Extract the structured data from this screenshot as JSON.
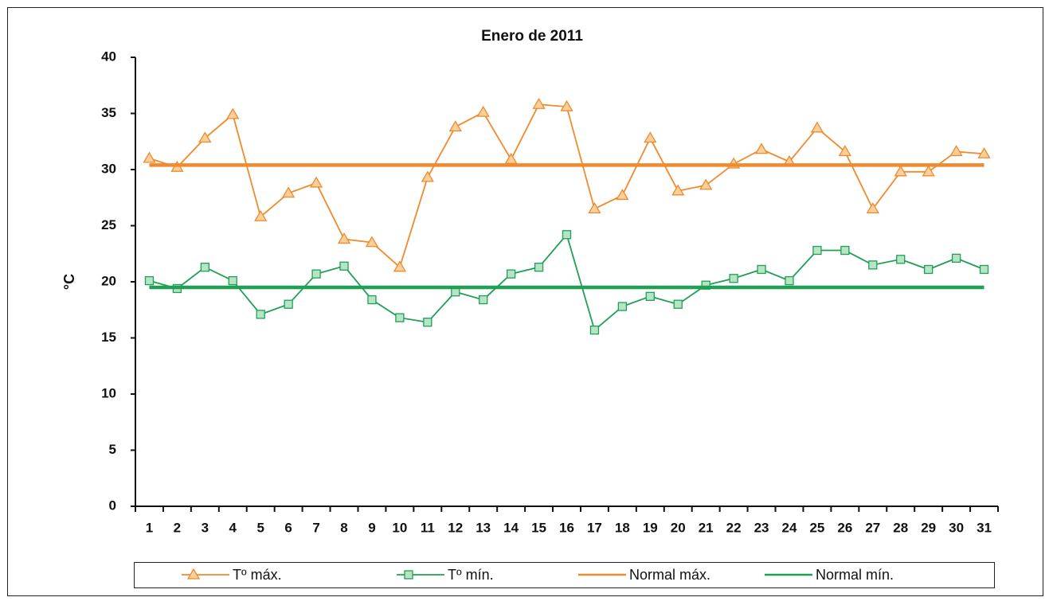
{
  "chart_data": {
    "type": "line",
    "title": "Enero de 2011",
    "y_label": "°C",
    "categories": [
      "1",
      "2",
      "3",
      "4",
      "5",
      "6",
      "7",
      "8",
      "9",
      "10",
      "11",
      "12",
      "13",
      "14",
      "15",
      "16",
      "17",
      "18",
      "19",
      "20",
      "21",
      "22",
      "23",
      "24",
      "25",
      "26",
      "27",
      "28",
      "29",
      "30",
      "31"
    ],
    "ylim": [
      0,
      40
    ],
    "yticks": [
      0,
      5,
      10,
      15,
      20,
      25,
      30,
      35,
      40
    ],
    "series": [
      {
        "name": "Tº máx.",
        "color": "#f08a2e",
        "marker": "triangle",
        "values": [
          31.0,
          30.2,
          32.8,
          34.9,
          25.8,
          27.9,
          28.8,
          23.8,
          23.5,
          21.3,
          29.3,
          33.8,
          35.1,
          30.9,
          35.8,
          35.6,
          26.5,
          27.7,
          32.8,
          28.1,
          28.6,
          30.5,
          31.8,
          30.7,
          33.7,
          31.6,
          26.5,
          29.8,
          29.8,
          31.6,
          31.4
        ]
      },
      {
        "name": "Tº mín.",
        "color": "#1fa055",
        "marker": "square",
        "values": [
          20.1,
          19.4,
          21.3,
          20.1,
          17.1,
          18.0,
          20.7,
          21.4,
          18.4,
          16.8,
          16.4,
          19.1,
          18.4,
          20.7,
          21.3,
          24.2,
          15.7,
          17.8,
          18.7,
          18.0,
          19.7,
          20.3,
          21.1,
          20.1,
          22.8,
          22.8,
          21.5,
          22.0,
          21.1,
          22.1,
          21.1
        ]
      },
      {
        "name": "Normal máx.",
        "color": "#f08a2e",
        "values": [
          30.4,
          30.4,
          30.4,
          30.4,
          30.4,
          30.4,
          30.4,
          30.4,
          30.4,
          30.4,
          30.4,
          30.4,
          30.4,
          30.4,
          30.4,
          30.4,
          30.4,
          30.4,
          30.4,
          30.4,
          30.4,
          30.4,
          30.4,
          30.4,
          30.4,
          30.4,
          30.4,
          30.4,
          30.4,
          30.4,
          30.4
        ]
      },
      {
        "name": "Normal mín.",
        "color": "#1fa055",
        "values": [
          19.5,
          19.5,
          19.5,
          19.5,
          19.5,
          19.5,
          19.5,
          19.5,
          19.5,
          19.5,
          19.5,
          19.5,
          19.5,
          19.5,
          19.5,
          19.5,
          19.5,
          19.5,
          19.5,
          19.5,
          19.5,
          19.5,
          19.5,
          19.5,
          19.5,
          19.5,
          19.5,
          19.5,
          19.5,
          19.5,
          19.5
        ]
      }
    ]
  }
}
